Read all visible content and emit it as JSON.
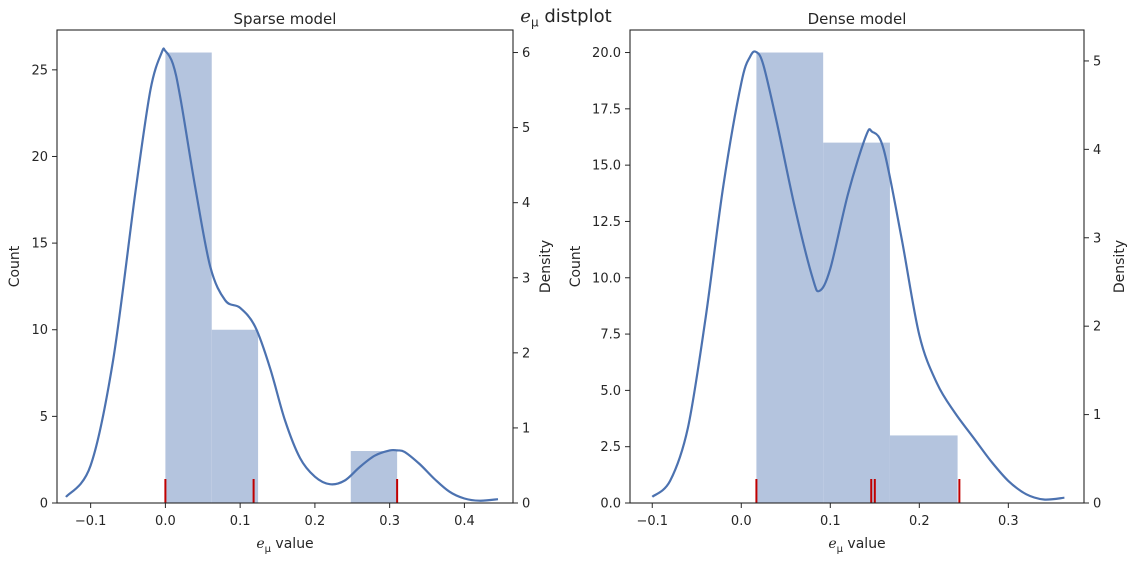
{
  "figure": {
    "suptitle_var": "e",
    "suptitle_sub": "μ",
    "suptitle_rest": " distplot"
  },
  "chart_data": [
    {
      "type": "bar",
      "title": "Sparse model",
      "xlabel_var": "e",
      "xlabel_sub": "μ",
      "xlabel_rest": " value",
      "ylabel": "Count",
      "y2label": "Density",
      "xlim": [
        -0.145,
        0.465
      ],
      "ylim": [
        0,
        27.3
      ],
      "y2lim": [
        0,
        6.3
      ],
      "xticks": [
        -0.1,
        0.0,
        0.1,
        0.2,
        0.3,
        0.4
      ],
      "xticklabels": [
        "−0.1",
        "0.0",
        "0.1",
        "0.2",
        "0.3",
        "0.4"
      ],
      "yticks": [
        0,
        5,
        10,
        15,
        20,
        25
      ],
      "yticklabels": [
        "0",
        "5",
        "10",
        "15",
        "20",
        "25"
      ],
      "y2ticks": [
        0,
        1,
        2,
        3,
        4,
        5,
        6
      ],
      "y2ticklabels": [
        "0",
        "1",
        "2",
        "3",
        "4",
        "5",
        "6"
      ],
      "bins": [
        [
          0.0,
          0.062,
          26
        ],
        [
          0.062,
          0.124,
          10
        ],
        [
          0.124,
          0.186,
          0
        ],
        [
          0.186,
          0.248,
          0
        ],
        [
          0.248,
          0.31,
          3
        ]
      ],
      "kde_x": [
        -0.133,
        -0.1,
        -0.07,
        -0.04,
        -0.02,
        -0.005,
        0.0,
        0.01,
        0.02,
        0.04,
        0.06,
        0.08,
        0.1,
        0.12,
        0.14,
        0.16,
        0.18,
        0.2,
        0.22,
        0.24,
        0.26,
        0.28,
        0.3,
        0.31,
        0.32,
        0.34,
        0.36,
        0.38,
        0.4,
        0.42,
        0.445
      ],
      "kde_density": [
        0.08,
        0.5,
        1.9,
        4.15,
        5.5,
        6.0,
        6.02,
        5.85,
        5.4,
        4.2,
        3.15,
        2.7,
        2.6,
        2.35,
        1.8,
        1.1,
        0.6,
        0.35,
        0.25,
        0.3,
        0.48,
        0.63,
        0.7,
        0.7,
        0.68,
        0.52,
        0.32,
        0.15,
        0.06,
        0.03,
        0.05
      ],
      "rug": [
        0.0,
        0.118,
        0.31
      ]
    },
    {
      "type": "bar",
      "title": "Dense model",
      "xlabel_var": "e",
      "xlabel_sub": "μ",
      "xlabel_rest": " value",
      "ylabel": "Count",
      "y2label": "Density",
      "xlim": [
        -0.125,
        0.385
      ],
      "ylim": [
        0,
        21.0
      ],
      "y2lim": [
        0,
        5.35
      ],
      "xticks": [
        -0.1,
        0.0,
        0.1,
        0.2,
        0.3
      ],
      "xticklabels": [
        "−0.1",
        "0.0",
        "0.1",
        "0.2",
        "0.3"
      ],
      "yticks": [
        0,
        2.5,
        5,
        7.5,
        10,
        12.5,
        15,
        17.5,
        20
      ],
      "yticklabels": [
        "0.0",
        "2.5",
        "5.0",
        "7.5",
        "10.0",
        "12.5",
        "15.0",
        "17.5",
        "20.0"
      ],
      "y2ticks": [
        0,
        1,
        2,
        3,
        4,
        5
      ],
      "y2ticklabels": [
        "0",
        "1",
        "2",
        "3",
        "4",
        "5"
      ],
      "bins": [
        [
          0.017,
          0.092,
          20
        ],
        [
          0.092,
          0.167,
          16
        ],
        [
          0.167,
          0.243,
          3
        ]
      ],
      "kde_x": [
        -0.1,
        -0.08,
        -0.06,
        -0.04,
        -0.02,
        0.0,
        0.01,
        0.017,
        0.025,
        0.04,
        0.06,
        0.08,
        0.088,
        0.1,
        0.12,
        0.14,
        0.147,
        0.16,
        0.18,
        0.2,
        0.22,
        0.24,
        0.26,
        0.28,
        0.3,
        0.32,
        0.34,
        0.363
      ],
      "kde_density": [
        0.07,
        0.25,
        0.85,
        2.1,
        3.6,
        4.75,
        5.05,
        5.1,
        4.95,
        4.3,
        3.35,
        2.55,
        2.4,
        2.65,
        3.5,
        4.15,
        4.2,
        4.0,
        3.0,
        1.9,
        1.35,
        1.02,
        0.75,
        0.48,
        0.25,
        0.1,
        0.04,
        0.06
      ],
      "rug": [
        0.017,
        0.146,
        0.15,
        0.245
      ]
    }
  ],
  "colors": {
    "bar": "#b4c4de",
    "kde": "#4c72b0",
    "rug": "#c00000",
    "axis": "#262626"
  }
}
